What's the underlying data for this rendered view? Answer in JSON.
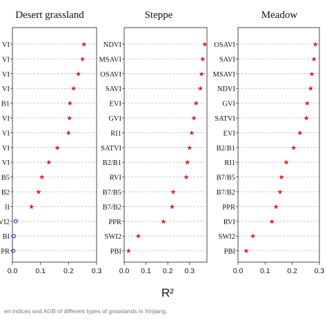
{
  "figure": {
    "x_axis_label": "R²",
    "caption": "en indices and AGB of different types of grasslands in Xinjiang."
  },
  "colors": {
    "red_marker": "#e31a1c",
    "blue_marker": "#1f3fd6",
    "gridline": "#bdbdbd",
    "frame": "#333333"
  },
  "chart_data": [
    {
      "type": "scatter",
      "title": "Desert grassland",
      "xlim": [
        0,
        0.3
      ],
      "xticks": [
        "0.0",
        "0.1",
        "0.2",
        "0.3"
      ],
      "categories": [
        "VI",
        "VI",
        "VI",
        "VI",
        "B1",
        "VI",
        "VI",
        "VI",
        "VI",
        "B5",
        "B2",
        "II",
        "VI2",
        "BI",
        "PR"
      ],
      "values": [
        0.255,
        0.25,
        0.235,
        0.218,
        0.205,
        0.203,
        0.2,
        0.16,
        0.13,
        0.105,
        0.093,
        0.068,
        0.012,
        0.005,
        0.003
      ],
      "significant": [
        true,
        true,
        true,
        true,
        true,
        true,
        true,
        true,
        true,
        true,
        true,
        true,
        false,
        false,
        false
      ],
      "grid": true
    },
    {
      "type": "scatter",
      "title": "Steppe",
      "xlim": [
        0,
        0.38
      ],
      "xticks": [
        "0.0",
        "0.1",
        "0.2",
        "0.3"
      ],
      "categories": [
        "NDVI",
        "MSAVI",
        "OSAVI",
        "SAVI",
        "EVI",
        "GVI",
        "RI1",
        "SATVI",
        "B2/B1",
        "RVI",
        "B7/B5",
        "B7/B2",
        "PPR",
        "SWI2",
        "PBI"
      ],
      "values": [
        0.37,
        0.36,
        0.355,
        0.35,
        0.33,
        0.32,
        0.31,
        0.3,
        0.29,
        0.285,
        0.225,
        0.22,
        0.18,
        0.065,
        0.02
      ],
      "significant": [
        true,
        true,
        true,
        true,
        true,
        true,
        true,
        true,
        true,
        true,
        true,
        true,
        true,
        true,
        true
      ],
      "grid": true
    },
    {
      "type": "scatter",
      "title": "Meadow",
      "xlim": [
        0,
        0.3
      ],
      "xticks": [
        "0.0",
        "0.1",
        "0.2",
        "0.3"
      ],
      "categories": [
        "OSAVI",
        "SAVI",
        "MSAVI",
        "NDVI",
        "GVI",
        "SATVI",
        "EVI",
        "B2/B1",
        "RI1",
        "B7/B5",
        "B7/B2",
        "PPR",
        "RVI",
        "SWI2",
        "PBI"
      ],
      "values": [
        0.285,
        0.28,
        0.272,
        0.268,
        0.255,
        0.252,
        0.228,
        0.205,
        0.178,
        0.16,
        0.155,
        0.14,
        0.125,
        0.055,
        0.03
      ],
      "significant": [
        true,
        true,
        true,
        true,
        true,
        true,
        true,
        true,
        true,
        true,
        true,
        true,
        true,
        true,
        true
      ],
      "grid": true
    }
  ]
}
